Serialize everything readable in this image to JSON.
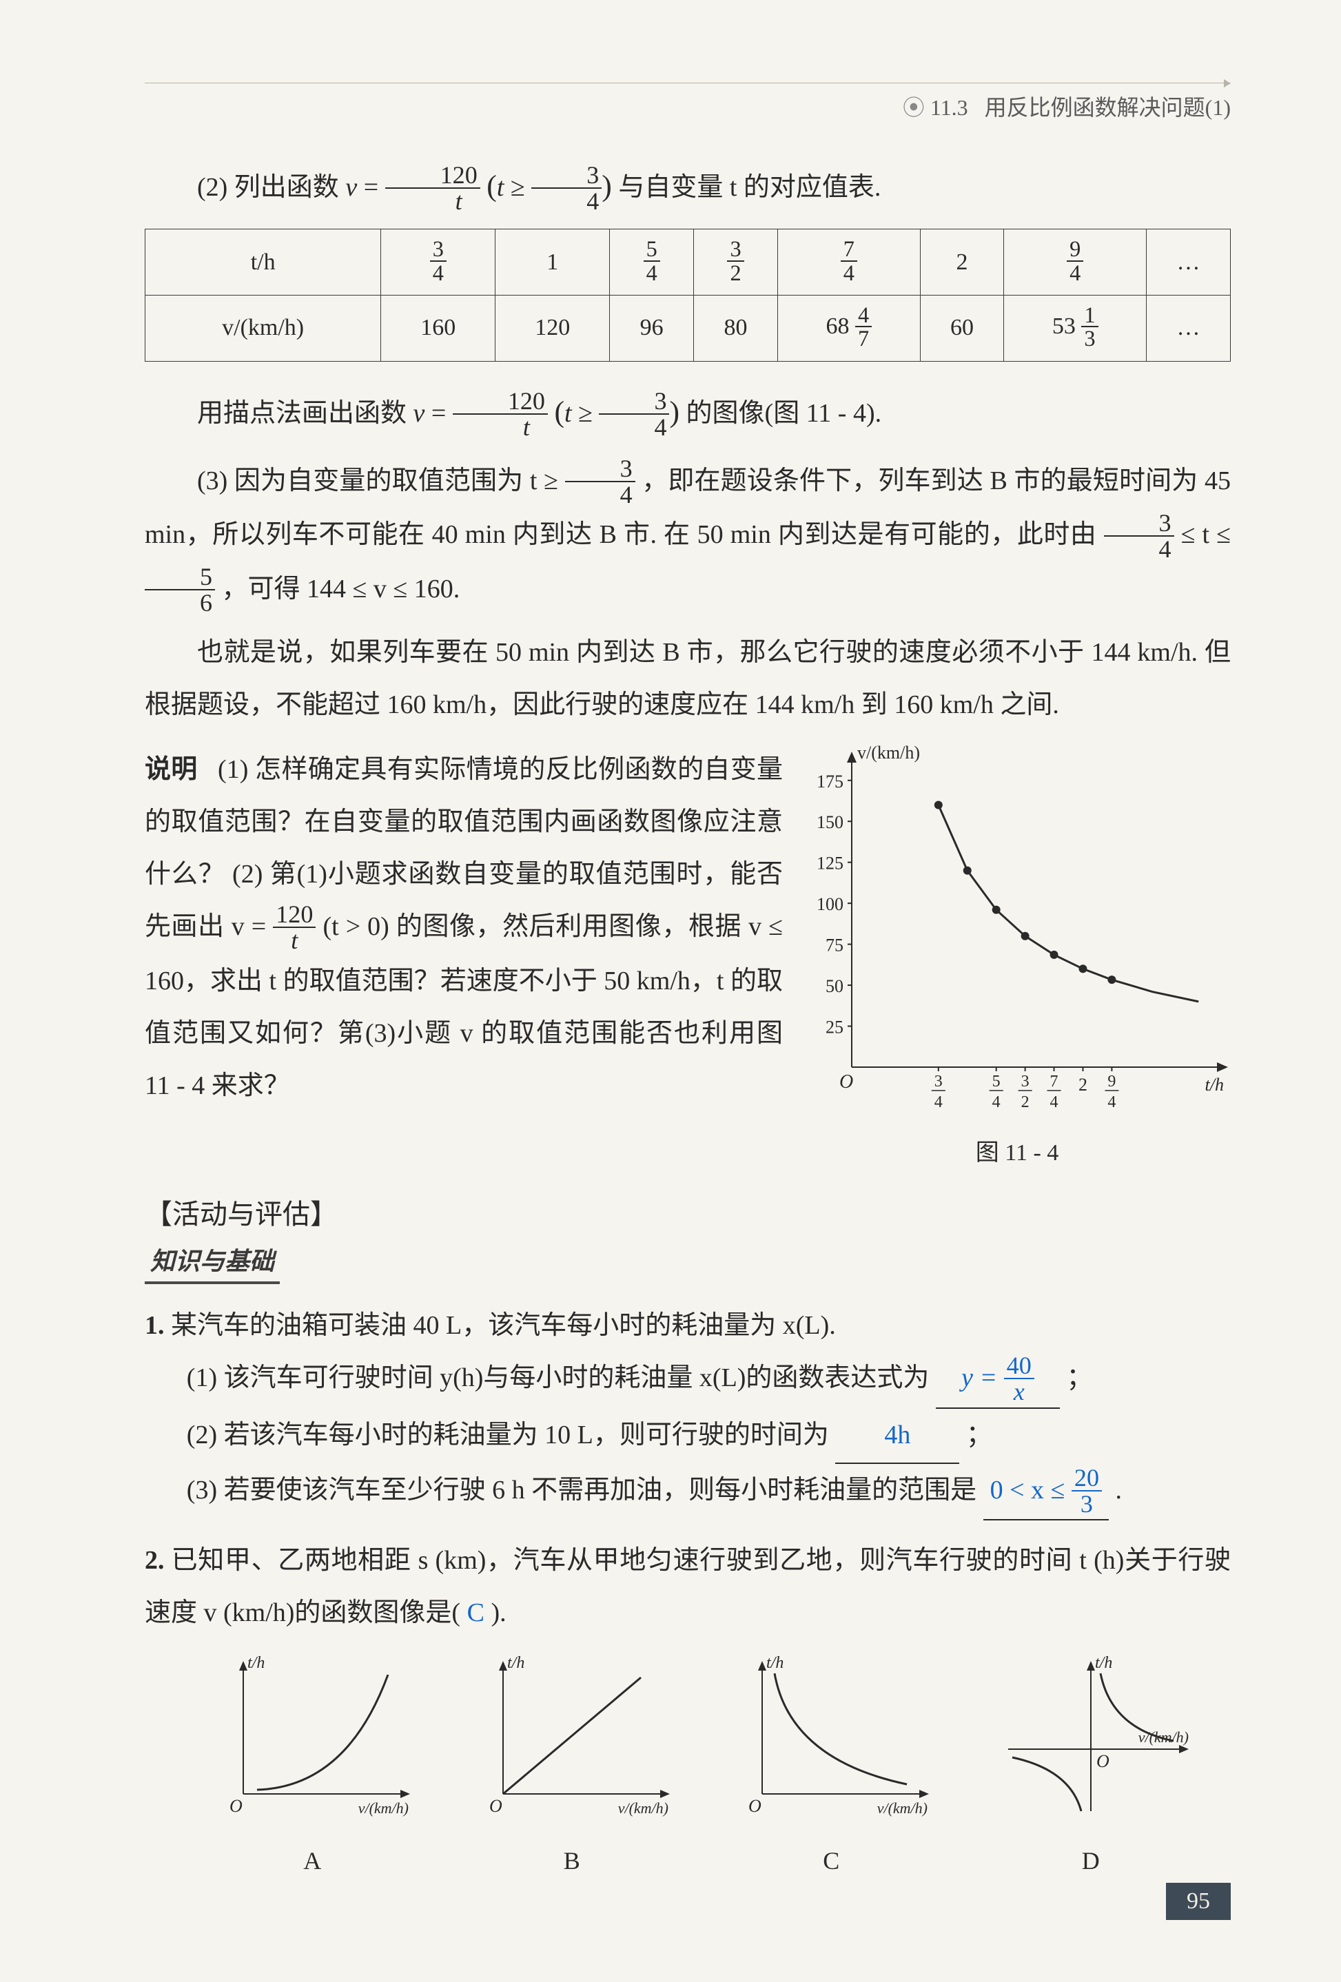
{
  "header": {
    "chapter_dot": "⦿",
    "chapter_num": "11.3",
    "chapter_title": "用反比例函数解决问题(1)"
  },
  "para_item2_prefix": "(2) 列出函数 ",
  "para_item2_func_num": "120",
  "para_item2_func_var": "t",
  "para_item2_cond_lhs": "t ≥ ",
  "para_item2_cond_num": "3",
  "para_item2_cond_den": "4",
  "para_item2_suffix": " 与自变量 t 的对应值表.",
  "table": {
    "row_labels": [
      "t/h",
      "v/(km/h)"
    ],
    "t_values": [
      "3/4",
      "1",
      "5/4",
      "3/2",
      "7/4",
      "2",
      "9/4",
      "…"
    ],
    "v_values": [
      "160",
      "120",
      "96",
      "80",
      "68 4/7",
      "60",
      "53 1/3",
      "…"
    ],
    "t_fracs": [
      {
        "num": "3",
        "den": "4"
      },
      {
        "plain": "1"
      },
      {
        "num": "5",
        "den": "4"
      },
      {
        "num": "3",
        "den": "2"
      },
      {
        "num": "7",
        "den": "4"
      },
      {
        "plain": "2"
      },
      {
        "num": "9",
        "den": "4"
      },
      {
        "plain": "…"
      }
    ],
    "v_cells": [
      {
        "plain": "160"
      },
      {
        "plain": "120"
      },
      {
        "plain": "96"
      },
      {
        "plain": "80"
      },
      {
        "mixed_int": "68",
        "num": "4",
        "den": "7"
      },
      {
        "plain": "60"
      },
      {
        "mixed_int": "53",
        "num": "1",
        "den": "3"
      },
      {
        "plain": "…"
      }
    ]
  },
  "para_plot_prefix": "用描点法画出函数 ",
  "para_plot_eq_lhs": "v = ",
  "para_plot_num": "120",
  "para_plot_den": "t",
  "para_plot_cond_num": "3",
  "para_plot_cond_den": "4",
  "para_plot_suffix": " 的图像(图 11 - 4).",
  "para3_a": "(3) 因为自变量的取值范围为 t ≥ ",
  "para3_frac_num": "3",
  "para3_frac_den": "4",
  "para3_b": "，即在题设条件下，列车到达 B 市的最短时间为 45 min，所以列车不可能在 40 min 内到达 B 市. 在 50 min 内到达是有可能的，此时由",
  "para3_range_a_num": "3",
  "para3_range_a_den": "4",
  "para3_range_mid": " ≤ t ≤ ",
  "para3_range_b_num": "5",
  "para3_range_b_den": "6",
  "para3_c": "，可得 144 ≤ v ≤ 160.",
  "para4": "也就是说，如果列车要在 50 min 内到达 B 市，那么它行驶的速度必须不小于 144 km/h. 但根据题设，不能超过 160 km/h，因此行驶的速度应在 144 km/h 到 160 km/h 之间.",
  "explain_label": "说明",
  "explain_body_a": "(1) 怎样确定具有实际情境的反比例函数的自变量的取值范围？在自变量的取值范围内画函数图像应注意什么？ (2) 第(1)小题求函数自变量的取值范围时，能否先画出 v = ",
  "explain_frac_num": "120",
  "explain_frac_den": "t",
  "explain_body_b": " (t > 0) 的图像，然后利用图像，根据 v ≤ 160，求出 t 的取值范围？若速度不小于 50 km/h，t 的取值范围又如何？第(3)小题 v 的取值范围能否也利用图 11 - 4 来求？",
  "chart": {
    "type": "scatter+line",
    "y_label": "v/(km/h)",
    "x_label": "t/h",
    "x_ticks": [
      "3/4",
      "5/4",
      "3/2",
      "7/4",
      "2",
      "9/4"
    ],
    "x_tick_vals": [
      0.75,
      1.25,
      1.5,
      1.75,
      2,
      2.25
    ],
    "y_ticks": [
      25,
      50,
      75,
      100,
      125,
      150,
      175
    ],
    "xlim": [
      0,
      3.1
    ],
    "ylim": [
      0,
      185
    ],
    "points": [
      {
        "x": 0.75,
        "y": 160
      },
      {
        "x": 1,
        "y": 120
      },
      {
        "x": 1.25,
        "y": 96
      },
      {
        "x": 1.5,
        "y": 80
      },
      {
        "x": 1.75,
        "y": 68.57
      },
      {
        "x": 2,
        "y": 60
      },
      {
        "x": 2.25,
        "y": 53.33
      },
      {
        "x": 2.6,
        "y": 46
      },
      {
        "x": 3.0,
        "y": 40
      }
    ],
    "curve_color": "#2a2a2a",
    "point_color": "#2a2a2a",
    "axis_color": "#2a2a2a",
    "bg": "#f6f4ef",
    "caption": "图 11 - 4"
  },
  "section_heading": "【活动与评估】",
  "knowledge_heading": "知识与基础",
  "q1": {
    "num": "1.",
    "stem": "某汽车的油箱可装油 40 L，该汽车每小时的耗油量为 x(L).",
    "p1_text": "(1) 该汽车可行驶时间 y(h)与每小时的耗油量 x(L)的函数表达式为",
    "p1_answer_lhs": "y = ",
    "p1_answer_num": "40",
    "p1_answer_den": "x",
    "p1_tail": "；",
    "p2_text": "(2) 若该汽车每小时的耗油量为 10 L，则可行驶的时间为",
    "p2_answer": "4h",
    "p2_tail": "；",
    "p3_text": "(3) 若要使该汽车至少行驶 6 h 不需再加油，则每小时耗油量的范围是",
    "p3_answer_a": "0 < x ≤ ",
    "p3_answer_num": "20",
    "p3_answer_den": "3",
    "p3_tail": "."
  },
  "q2": {
    "num": "2.",
    "stem_a": "已知甲、乙两地相距 s (km)，汽车从甲地匀速行驶到乙地，则汽车行驶的时间 t (h)关于行驶速度 v (km/h)的函数图像是(",
    "answer": "C",
    "stem_b": ").",
    "options": [
      "A",
      "B",
      "C",
      "D"
    ],
    "axes_y": "t/h",
    "axes_x": "v/(km/h)",
    "curve_colors": {
      "axis": "#2a2a2a",
      "curve": "#2a2a2a"
    }
  },
  "page_number": "95"
}
